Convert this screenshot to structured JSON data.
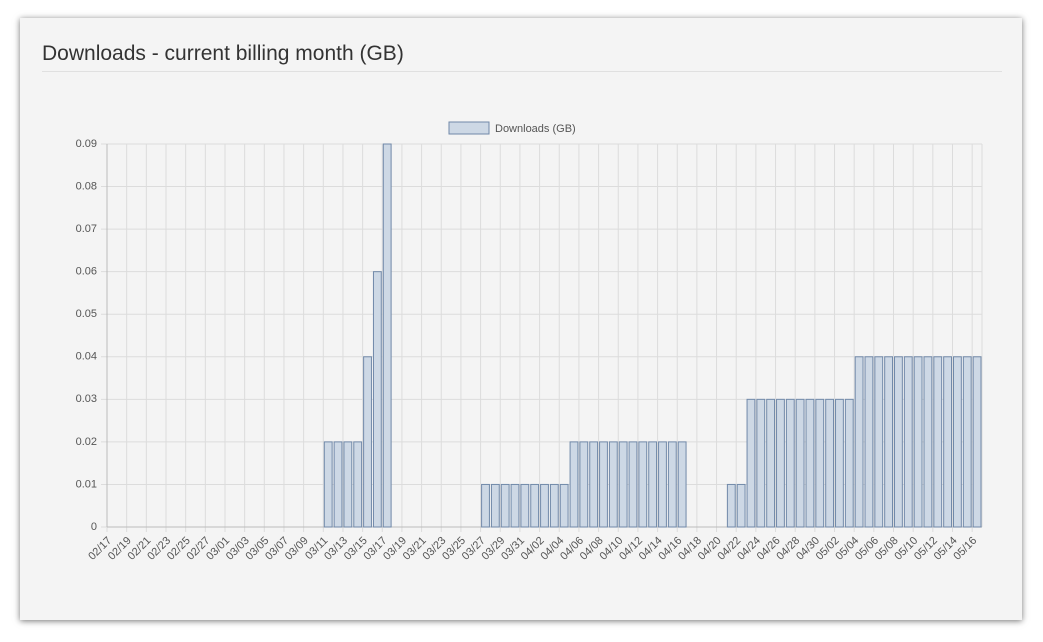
{
  "chart_data": {
    "type": "bar",
    "title": "Downloads - current billing month (GB)",
    "categories": [
      "02/17",
      null,
      "02/19",
      null,
      "02/21",
      null,
      "02/23",
      null,
      "02/25",
      null,
      "02/27",
      null,
      "03/01",
      null,
      "03/03",
      null,
      "03/05",
      null,
      "03/07",
      null,
      "03/09",
      null,
      "03/11",
      null,
      "03/13",
      null,
      "03/15",
      null,
      "03/17",
      null,
      "03/19",
      null,
      "03/21",
      null,
      "03/23",
      null,
      "03/25",
      null,
      "03/27",
      null,
      "03/29",
      null,
      "03/31",
      null,
      "04/02",
      null,
      "04/04",
      null,
      "04/06",
      null,
      "04/08",
      null,
      "04/10",
      null,
      "04/12",
      null,
      "04/14",
      null,
      "04/16",
      null,
      "04/18",
      null,
      "04/20",
      null,
      "04/22",
      null,
      "04/24",
      null,
      "04/26",
      null,
      "04/28",
      null,
      "04/30",
      null,
      "05/02",
      null,
      "05/04",
      null,
      "05/06",
      null,
      "05/08",
      null,
      "05/10",
      null,
      "05/12",
      null,
      "05/14",
      null,
      "05/16"
    ],
    "series": [
      {
        "name": "Downloads (GB)",
        "color": "#cdd8e5",
        "border_color": "#7189a9",
        "values": [
          0,
          0,
          0,
          0,
          0,
          0,
          0,
          0,
          0,
          0,
          0,
          0,
          0,
          0,
          0,
          0,
          0,
          0,
          0,
          0,
          0,
          0,
          0.02,
          0.02,
          0.02,
          0.02,
          0.04,
          0.06,
          0.09,
          0,
          0,
          0,
          0,
          0,
          0,
          0,
          0,
          0,
          0.01,
          0.01,
          0.01,
          0.01,
          0.01,
          0.01,
          0.01,
          0.01,
          0.01,
          0.02,
          0.02,
          0.02,
          0.02,
          0.02,
          0.02,
          0.02,
          0.02,
          0.02,
          0.02,
          0.02,
          0.02,
          0,
          0,
          0,
          0,
          0.01,
          0.01,
          0.03,
          0.03,
          0.03,
          0.03,
          0.03,
          0.03,
          0.03,
          0.03,
          0.03,
          0.03,
          0.03,
          0.04,
          0.04,
          0.04,
          0.04,
          0.04,
          0.04,
          0.04,
          0.04,
          0.04,
          0.04,
          0.04,
          0.04,
          0.04
        ]
      }
    ],
    "ylim": [
      0,
      0.09
    ],
    "yticks": [
      0,
      0.01,
      0.02,
      0.03,
      0.04,
      0.05,
      0.06,
      0.07,
      0.08,
      0.09
    ],
    "grid": true,
    "legend": "top"
  }
}
